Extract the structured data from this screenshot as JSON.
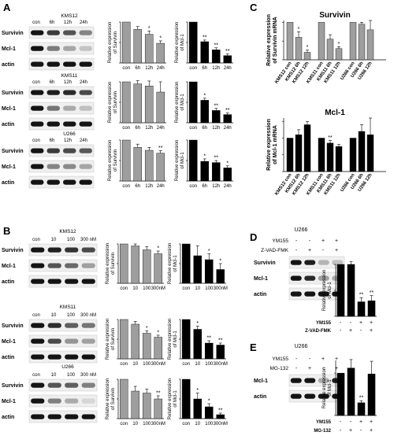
{
  "figure": {
    "A": {
      "label": "A",
      "conditions": [
        "con",
        "6h",
        "12h",
        "24h"
      ],
      "survivin_ylabel": [
        "Relative expression",
        "of Survivin"
      ],
      "mcl1_ylabel": [
        "Relative expression",
        "of Mcl-1"
      ],
      "panels": [
        {
          "cell": "KMS12",
          "survivin": {
            "values": [
              1.0,
              0.82,
              0.7,
              0.48
            ],
            "errors": [
              0,
              0.07,
              0.08,
              0.06
            ],
            "stars": [
              "",
              "",
              "*",
              "*"
            ]
          },
          "mcl1": {
            "values": [
              1.0,
              0.52,
              0.32,
              0.18
            ],
            "errors": [
              0,
              0.04,
              0.05,
              0.04
            ],
            "stars": [
              "",
              "**",
              "**",
              "**"
            ]
          }
        },
        {
          "cell": "KMS11",
          "survivin": {
            "values": [
              1.0,
              0.95,
              0.9,
              0.75
            ],
            "errors": [
              0,
              0.08,
              0.12,
              0.25
            ],
            "stars": [
              "",
              "",
              "",
              ""
            ]
          },
          "mcl1": {
            "values": [
              1.0,
              0.55,
              0.3,
              0.2
            ],
            "errors": [
              0,
              0.05,
              0.05,
              0.04
            ],
            "stars": [
              "",
              "*",
              "**",
              "**"
            ]
          }
        },
        {
          "cell": "U266",
          "survivin": {
            "values": [
              1.0,
              0.82,
              0.75,
              0.68
            ],
            "errors": [
              0,
              0.08,
              0.07,
              0.06
            ],
            "stars": [
              "",
              "",
              "",
              "**"
            ]
          },
          "mcl1": {
            "values": [
              1.0,
              0.48,
              0.45,
              0.32
            ],
            "errors": [
              0,
              0.06,
              0.05,
              0.05
            ],
            "stars": [
              "",
              "*",
              "**",
              "*"
            ]
          }
        }
      ]
    },
    "B": {
      "label": "B",
      "conditions": [
        "con",
        "10",
        "100",
        "300nM"
      ],
      "blot_header": [
        "con",
        "10",
        "100",
        "300 nM"
      ],
      "survivin_ylabel": [
        "Relative expression",
        "of Survivin"
      ],
      "mcl1_ylabel": [
        "Relative expression",
        "of Mcl-1"
      ],
      "panels": [
        {
          "cell": "KMS12",
          "survivin": {
            "values": [
              1.0,
              0.95,
              0.85,
              0.75
            ],
            "errors": [
              0,
              0.05,
              0.08,
              0.07
            ],
            "stars": [
              "",
              "",
              "",
              "*"
            ]
          },
          "mcl1": {
            "values": [
              1.0,
              0.7,
              0.6,
              0.35
            ],
            "errors": [
              0,
              0.25,
              0.15,
              0.15
            ],
            "stars": [
              "",
              "",
              "*",
              "*"
            ]
          }
        },
        {
          "cell": "KMS11",
          "survivin": {
            "values": [
              1.0,
              0.88,
              0.65,
              0.55
            ],
            "errors": [
              0,
              0.07,
              0.06,
              0.05
            ],
            "stars": [
              "",
              "",
              "*",
              "*"
            ]
          },
          "mcl1": {
            "values": [
              1.0,
              0.75,
              0.4,
              0.35
            ],
            "errors": [
              0,
              0.08,
              0.06,
              0.05
            ],
            "stars": [
              "",
              "*",
              "**",
              "**"
            ]
          }
        },
        {
          "cell": "U266",
          "survivin": {
            "values": [
              1.0,
              0.7,
              0.65,
              0.5
            ],
            "errors": [
              0,
              0.12,
              0.1,
              0.08
            ],
            "stars": [
              "",
              "",
              "",
              "**"
            ]
          },
          "mcl1": {
            "values": [
              1.0,
              0.5,
              0.3,
              0.1
            ],
            "errors": [
              0,
              0.15,
              0.08,
              0.04
            ],
            "stars": [
              "",
              "*",
              "*",
              "**"
            ]
          }
        }
      ]
    },
    "C": {
      "label": "C",
      "survivin": {
        "title": "Survivin",
        "ylabel": [
          "Relative expression",
          "of Survivin mRNA"
        ],
        "categories": [
          "KMS12 con",
          "KMS12 6h",
          "KMS12 12h",
          "KMS11 con",
          "KMS11 6h",
          "KMS11 12h",
          "U266 con",
          "U266 6h",
          "U266 12h"
        ],
        "values": [
          1.0,
          0.6,
          0.2,
          1.0,
          0.55,
          0.3,
          1.0,
          0.95,
          0.8
        ],
        "errors": [
          0,
          0.15,
          0.06,
          0,
          0.12,
          0.05,
          0,
          0.05,
          0.25
        ],
        "stars": [
          "",
          "*",
          "*",
          "",
          "",
          "*",
          "",
          "",
          ""
        ]
      },
      "mcl1": {
        "title": "Mcl-1",
        "ylabel": [
          "Relative expression",
          "of Mcl-1 mRNA"
        ],
        "categories": [
          "KMS12 con",
          "KMS12 6h",
          "KMS12 12h",
          "KMS11 con",
          "KMS11 6h",
          "KMS11 12h",
          "U266 con",
          "U266 6h",
          "U266 12h"
        ],
        "values": [
          1.0,
          1.1,
          1.4,
          1.0,
          0.85,
          0.75,
          1.0,
          1.2,
          1.1
        ],
        "errors": [
          0,
          0.15,
          0.1,
          0,
          0.08,
          0.06,
          0,
          0.2,
          0.5
        ],
        "stars": [
          "",
          "",
          "",
          "",
          "**",
          "",
          "",
          "",
          ""
        ]
      }
    },
    "D": {
      "label": "D",
      "cell": "U266",
      "treatments": [
        "YM155",
        "Z-VAD-FMK"
      ],
      "signs": [
        [
          "-",
          "-",
          "+",
          "+"
        ],
        [
          "-",
          "+",
          "-",
          "+"
        ]
      ],
      "blots": [
        "Survivin",
        "Mcl-1",
        "actin"
      ],
      "ylabel": [
        "Relative expression",
        "of Mcl-1"
      ],
      "values": [
        1.0,
        1.0,
        0.28,
        0.3
      ],
      "errors": [
        0,
        0.05,
        0.08,
        0.1
      ],
      "stars": [
        "",
        "",
        "**",
        "**"
      ]
    },
    "E": {
      "label": "E",
      "cell": "U266",
      "treatments": [
        "YM155",
        "MG-132"
      ],
      "signs": [
        [
          "-",
          "-",
          "+",
          "+"
        ],
        [
          "-",
          "+",
          "-",
          "+"
        ]
      ],
      "blots": [
        "Mcl-1",
        "actin"
      ],
      "ylabel": [
        "Relative expression",
        "of Mcl-1"
      ],
      "values": [
        1.0,
        1.12,
        0.3,
        0.98
      ],
      "errors": [
        0,
        0.2,
        0.05,
        0.3
      ],
      "stars": [
        "",
        "",
        "**",
        ""
      ]
    },
    "blot_labels": [
      "Survivin",
      "Mcl-1",
      "actin"
    ],
    "scale": {
      "ymax": 1.0
    }
  }
}
